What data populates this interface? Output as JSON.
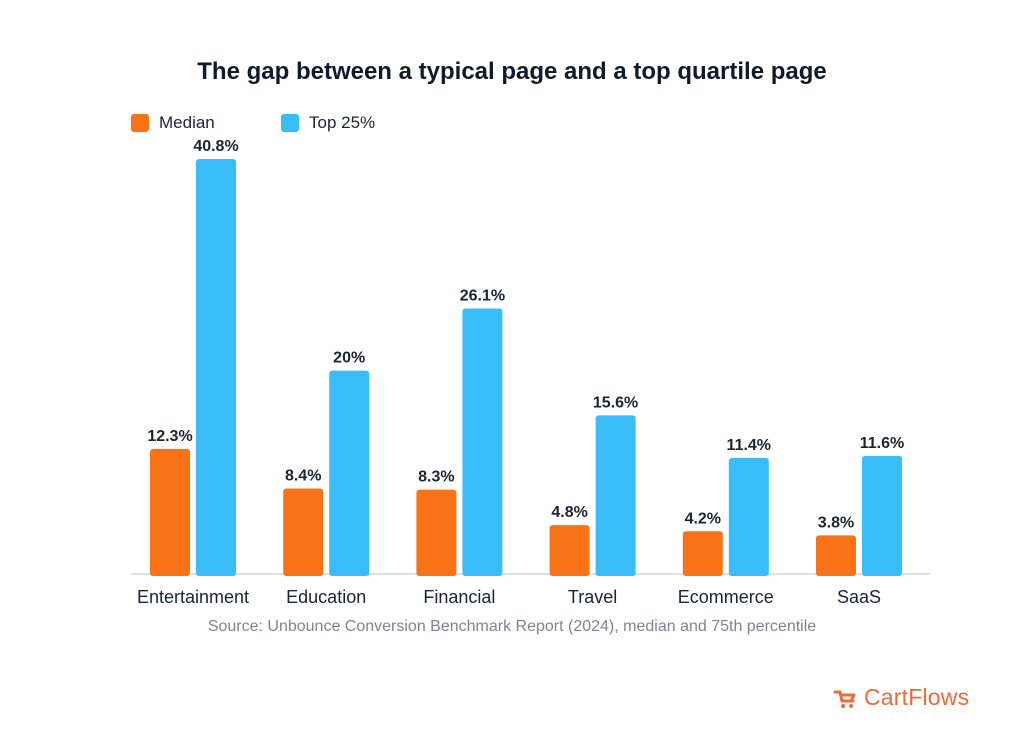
{
  "colors": {
    "median": "#f97316",
    "top25": "#38bdf8",
    "brand": "#f06a35"
  },
  "source": "Source: Unbounce Conversion Benchmark Report (2024), median and 75th percentile",
  "brand": {
    "name": "CartFlows",
    "icon": "cartflows-logo-icon"
  },
  "chart_data": {
    "type": "bar",
    "title": "The gap between a typical page and a top quartile page",
    "xlabel": "",
    "ylabel": "",
    "ylim": [
      0,
      40.8
    ],
    "grid": false,
    "legend_placement": "top-left",
    "categories": [
      "Entertainment",
      "Education",
      "Financial",
      "Travel",
      "Ecommerce",
      "SaaS"
    ],
    "series": [
      {
        "name": "Median",
        "values": [
          12.3,
          8.4,
          8.3,
          4.8,
          4.2,
          3.8
        ],
        "labels": [
          "12.3%",
          "8.4%",
          "8.3%",
          "4.8%",
          "4.2%",
          "3.8%"
        ]
      },
      {
        "name": "Top 25%",
        "values": [
          40.8,
          20,
          26.1,
          15.6,
          11.4,
          11.6
        ],
        "labels": [
          "40.8%",
          "20%",
          "26.1%",
          "15.6%",
          "11.4%",
          "11.6%"
        ]
      }
    ]
  }
}
